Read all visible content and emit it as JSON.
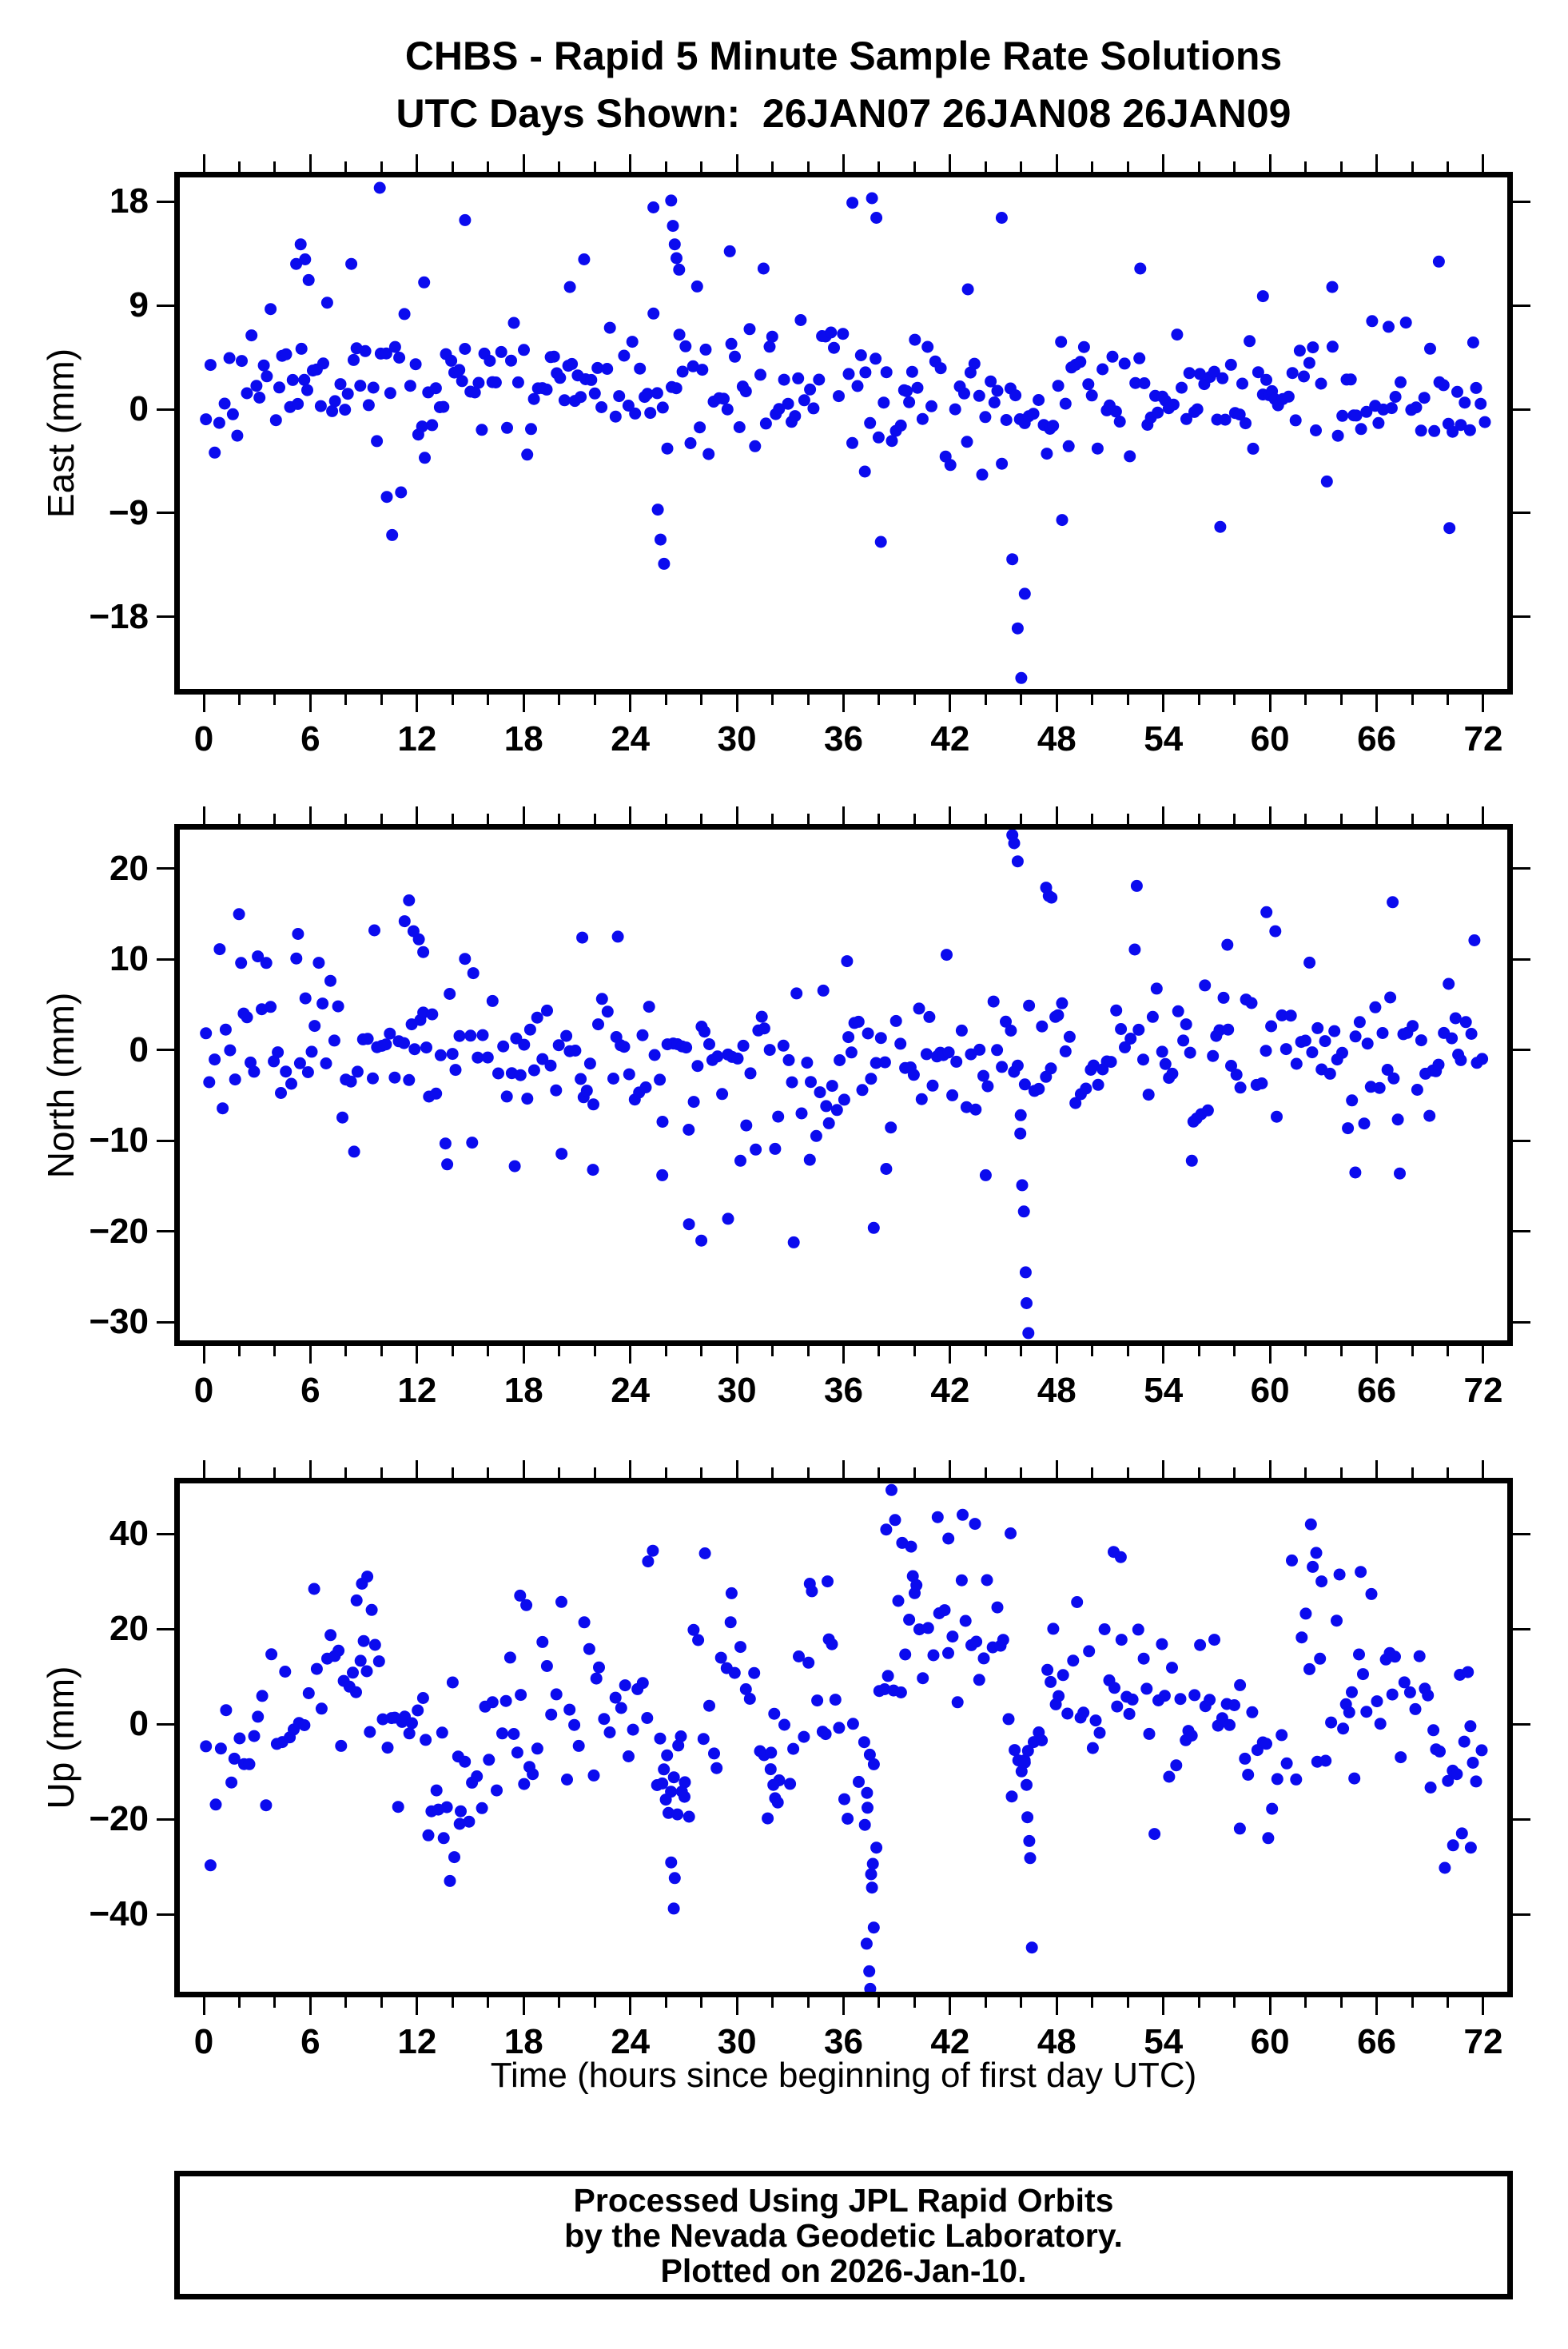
{
  "title": {
    "line1": "CHBS - Rapid 5 Minute Sample Rate Solutions",
    "line2": "UTC Days Shown:  26JAN07 26JAN08 26JAN09"
  },
  "station": "CHBS",
  "utc_days_shown": [
    "26JAN07",
    "26JAN08",
    "26JAN09"
  ],
  "xaxis": {
    "title": "Time (hours since beginning of first day UTC)",
    "lim": [
      -1.35,
      73.35
    ],
    "major_ticks": [
      0,
      6,
      12,
      18,
      24,
      30,
      36,
      42,
      48,
      54,
      60,
      66,
      72
    ],
    "minor_step_hours": 2
  },
  "marker": {
    "color": "#0b0bee",
    "radius": 7.5,
    "shape": "circle"
  },
  "footer": {
    "lines": [
      "Processed Using JPL Rapid Orbits",
      "by the Nevada Geodetic Laboratory.",
      "Plotted on 2026-Jan-10."
    ]
  },
  "chart_data": [
    {
      "type": "scatter",
      "name": "east",
      "ylabel": "East (mm)",
      "ylim": [
        -24.25,
        20.1
      ],
      "yticks": [
        -18,
        -9,
        0,
        9,
        18
      ],
      "sample_step_hours": 0.235,
      "noise_sigma": 2.7,
      "seed": 11,
      "mean_segments": [
        [
          0,
          5,
          2.2
        ],
        [
          5,
          7,
          4.4
        ],
        [
          7,
          12,
          2.8
        ],
        [
          12,
          24,
          2.0
        ],
        [
          24,
          27,
          2.4
        ],
        [
          27,
          36,
          2.2
        ],
        [
          36,
          48,
          1.2
        ],
        [
          48,
          60,
          0.8
        ],
        [
          60,
          72,
          0.8
        ]
      ],
      "outliers": [
        [
          5.2,
          12.6
        ],
        [
          5.45,
          14.3
        ],
        [
          5.7,
          13.0
        ],
        [
          5.9,
          11.2
        ],
        [
          8.3,
          12.6
        ],
        [
          9.9,
          19.2
        ],
        [
          10.3,
          -7.6
        ],
        [
          10.6,
          -10.9
        ],
        [
          11.1,
          -7.2
        ],
        [
          12.4,
          11.0
        ],
        [
          14.7,
          16.4
        ],
        [
          20.6,
          10.6
        ],
        [
          21.4,
          13.0
        ],
        [
          25.3,
          17.5
        ],
        [
          25.55,
          -8.7
        ],
        [
          25.7,
          -11.3
        ],
        [
          25.9,
          -13.4
        ],
        [
          26.3,
          18.1
        ],
        [
          26.4,
          15.9
        ],
        [
          26.5,
          14.3
        ],
        [
          26.6,
          13.1
        ],
        [
          26.75,
          12.1
        ],
        [
          29.6,
          13.7
        ],
        [
          31.5,
          12.2
        ],
        [
          36.5,
          17.9
        ],
        [
          37.2,
          -5.4
        ],
        [
          37.6,
          18.3
        ],
        [
          37.85,
          16.6
        ],
        [
          38.1,
          -11.5
        ],
        [
          43.0,
          10.4
        ],
        [
          44.9,
          16.6
        ],
        [
          45.5,
          -13.0
        ],
        [
          45.8,
          -19.0
        ],
        [
          46.0,
          -23.3
        ],
        [
          46.2,
          -16.0
        ],
        [
          48.3,
          -9.6
        ],
        [
          52.7,
          12.2
        ],
        [
          57.2,
          -10.2
        ],
        [
          59.6,
          9.8
        ],
        [
          63.5,
          10.6
        ],
        [
          69.5,
          12.8
        ],
        [
          70.1,
          -10.3
        ]
      ]
    },
    {
      "type": "scatter",
      "name": "north",
      "ylabel": "North (mm)",
      "ylim": [
        -32.0,
        24.3
      ],
      "yticks": [
        -30,
        -20,
        -10,
        0,
        10,
        20
      ],
      "sample_step_hours": 0.235,
      "noise_sigma": 4.3,
      "seed": 22,
      "mean_segments": [
        [
          0,
          12,
          1.5
        ],
        [
          12,
          24,
          -0.5
        ],
        [
          24,
          36,
          -2.0
        ],
        [
          36,
          48,
          -1.0
        ],
        [
          48,
          60,
          0.0
        ],
        [
          60,
          72,
          -0.5
        ]
      ],
      "outliers": [
        [
          2.1,
          9.6
        ],
        [
          5.3,
          12.8
        ],
        [
          9.6,
          13.2
        ],
        [
          11.3,
          14.2
        ],
        [
          11.55,
          16.5
        ],
        [
          11.8,
          13.1
        ],
        [
          12.1,
          12.2
        ],
        [
          12.35,
          10.8
        ],
        [
          13.7,
          -12.6
        ],
        [
          15.1,
          -10.2
        ],
        [
          17.5,
          -12.8
        ],
        [
          21.3,
          12.4
        ],
        [
          21.9,
          -13.2
        ],
        [
          23.3,
          12.5
        ],
        [
          25.8,
          -13.8
        ],
        [
          27.3,
          -19.2
        ],
        [
          28.0,
          -21.0
        ],
        [
          29.5,
          -18.6
        ],
        [
          30.2,
          -12.2
        ],
        [
          33.2,
          -21.2
        ],
        [
          34.1,
          -12.1
        ],
        [
          36.2,
          9.8
        ],
        [
          37.7,
          -19.6
        ],
        [
          38.4,
          -13.1
        ],
        [
          41.8,
          10.5
        ],
        [
          44.0,
          -13.8
        ],
        [
          45.5,
          23.7
        ],
        [
          45.6,
          22.8
        ],
        [
          45.8,
          20.8
        ],
        [
          45.95,
          -9.2
        ],
        [
          46.05,
          -14.9
        ],
        [
          46.15,
          -17.8
        ],
        [
          46.25,
          -24.5
        ],
        [
          46.3,
          -27.9
        ],
        [
          46.4,
          -31.2
        ],
        [
          47.4,
          17.9
        ],
        [
          47.55,
          17.0
        ],
        [
          47.7,
          16.8
        ],
        [
          52.5,
          18.1
        ],
        [
          55.6,
          -12.2
        ],
        [
          57.6,
          11.6
        ],
        [
          59.8,
          15.2
        ],
        [
          60.3,
          13.1
        ],
        [
          64.8,
          -13.5
        ],
        [
          66.9,
          16.3
        ],
        [
          67.3,
          -13.6
        ],
        [
          71.5,
          12.1
        ]
      ]
    },
    {
      "type": "scatter",
      "name": "up",
      "ylabel": "Up (mm)",
      "ylim": [
        -56.3,
        50.6
      ],
      "yticks": [
        -40,
        -20,
        0,
        20,
        40
      ],
      "sample_step_hours": 0.235,
      "noise_sigma": 9.5,
      "seed": 33,
      "mean_segments": [
        [
          0,
          2,
          -4
        ],
        [
          2,
          6,
          -1
        ],
        [
          6,
          10,
          8
        ],
        [
          10,
          12,
          2
        ],
        [
          12,
          15,
          -12
        ],
        [
          15,
          17,
          -2
        ],
        [
          17,
          24,
          7
        ],
        [
          24,
          25.5,
          10
        ],
        [
          25.5,
          27.5,
          -12
        ],
        [
          27.5,
          31,
          8
        ],
        [
          31,
          33,
          -6
        ],
        [
          33,
          36,
          6
        ],
        [
          36,
          38,
          -14
        ],
        [
          38,
          45,
          20
        ],
        [
          45,
          47,
          -6
        ],
        [
          47,
          52,
          8
        ],
        [
          52,
          58,
          4
        ],
        [
          58,
          61,
          -4
        ],
        [
          61,
          66,
          10
        ],
        [
          66,
          69,
          5
        ],
        [
          69,
          72,
          -7
        ]
      ],
      "outliers": [
        [
          8.6,
          26
        ],
        [
          8.9,
          29.5
        ],
        [
          9.2,
          31
        ],
        [
          9.45,
          24
        ],
        [
          13.2,
          -18
        ],
        [
          13.5,
          -24
        ],
        [
          13.85,
          -33
        ],
        [
          14.1,
          -28
        ],
        [
          14.4,
          -21
        ],
        [
          17.8,
          27
        ],
        [
          18.15,
          25
        ],
        [
          25.0,
          34.2
        ],
        [
          25.8,
          -12.5
        ],
        [
          26.0,
          -15.9
        ],
        [
          26.15,
          -18.7
        ],
        [
          26.3,
          -29.1
        ],
        [
          26.45,
          -38.8
        ],
        [
          26.5,
          -32.4
        ],
        [
          26.65,
          -19.0
        ],
        [
          26.9,
          -14.2
        ],
        [
          27.05,
          -15.3
        ],
        [
          28.2,
          35.9
        ],
        [
          29.7,
          27.5
        ],
        [
          31.9,
          -9.5
        ],
        [
          32.05,
          -12.8
        ],
        [
          32.15,
          -15.6
        ],
        [
          32.3,
          -16.5
        ],
        [
          34.1,
          29.5
        ],
        [
          35.1,
          30.0
        ],
        [
          37.2,
          -21.2
        ],
        [
          37.3,
          -46.2
        ],
        [
          37.35,
          -17.6
        ],
        [
          37.45,
          -52.0
        ],
        [
          37.5,
          -55.7
        ],
        [
          37.55,
          -31.6
        ],
        [
          37.6,
          -34.4
        ],
        [
          37.65,
          -29.4
        ],
        [
          37.7,
          -42.8
        ],
        [
          37.85,
          -26.0
        ],
        [
          38.4,
          40.9
        ],
        [
          38.7,
          49.2
        ],
        [
          38.9,
          42.9
        ],
        [
          39.3,
          38.1
        ],
        [
          39.8,
          37.3
        ],
        [
          39.9,
          31.1
        ],
        [
          40.1,
          29.2
        ],
        [
          41.3,
          43.5
        ],
        [
          41.9,
          39.0
        ],
        [
          42.7,
          44.0
        ],
        [
          43.4,
          42.1
        ],
        [
          45.4,
          40.1
        ],
        [
          46.2,
          -8.1
        ],
        [
          46.3,
          -12.8
        ],
        [
          46.35,
          -19.6
        ],
        [
          46.45,
          -24.6
        ],
        [
          46.5,
          -28.2
        ],
        [
          46.6,
          -47.0
        ],
        [
          51.2,
          36.2
        ],
        [
          51.6,
          35.1
        ],
        [
          58.3,
          -22.0
        ],
        [
          59.9,
          -24.0
        ],
        [
          62.3,
          42.0
        ],
        [
          62.6,
          36.0
        ],
        [
          62.9,
          30.0
        ],
        [
          65.1,
          32.0
        ],
        [
          70.3,
          -25.5
        ],
        [
          70.8,
          -23.0
        ],
        [
          71.3,
          -26.0
        ]
      ]
    }
  ]
}
